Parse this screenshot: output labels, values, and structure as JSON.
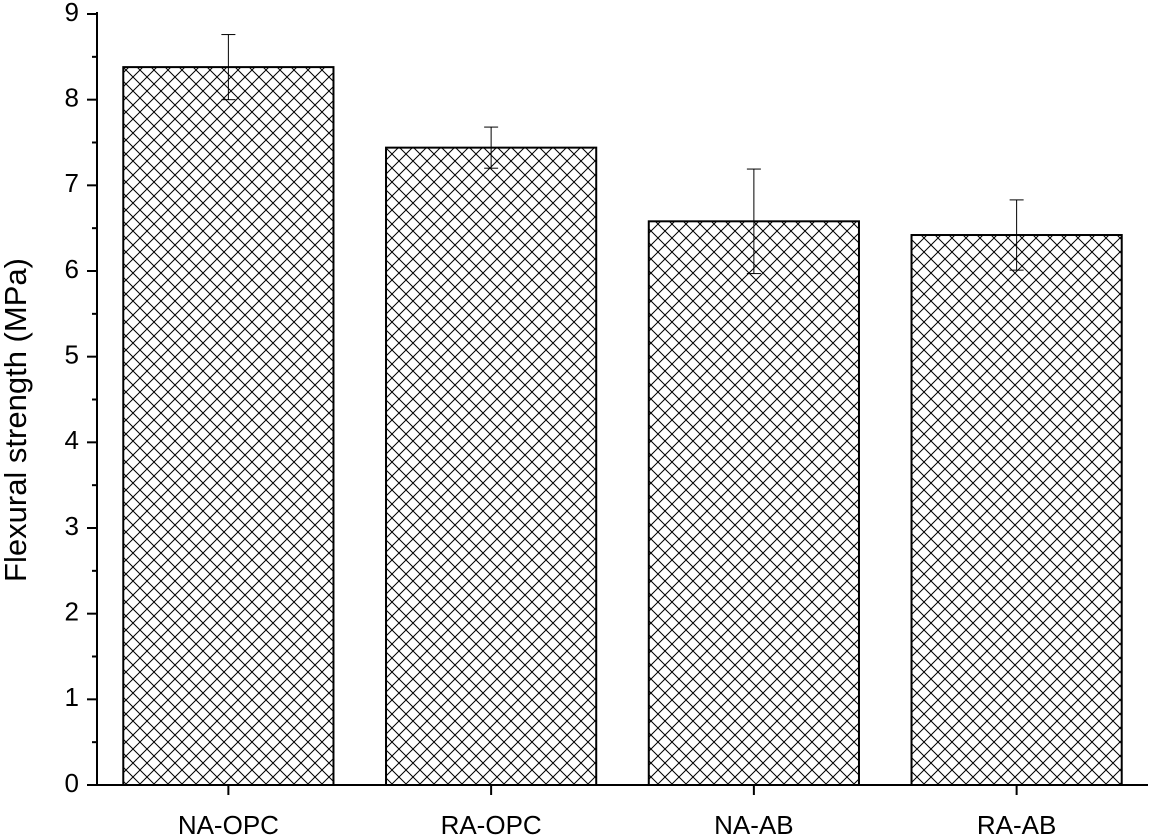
{
  "chart_data": {
    "type": "bar",
    "y_label": "Flexural strength (MPa)",
    "categories": [
      "NA-OPC",
      "RA-OPC",
      "NA-AB",
      "RA-AB"
    ],
    "values": [
      8.38,
      7.44,
      6.58,
      6.42
    ],
    "errors": [
      0.38,
      0.24,
      0.61,
      0.41
    ],
    "color": "#000000",
    "pattern": "crosshatch",
    "ylim": [
      0,
      9
    ],
    "yticks": [
      0,
      1,
      2,
      3,
      4,
      5,
      6,
      7,
      8,
      9
    ],
    "grid": false
  }
}
